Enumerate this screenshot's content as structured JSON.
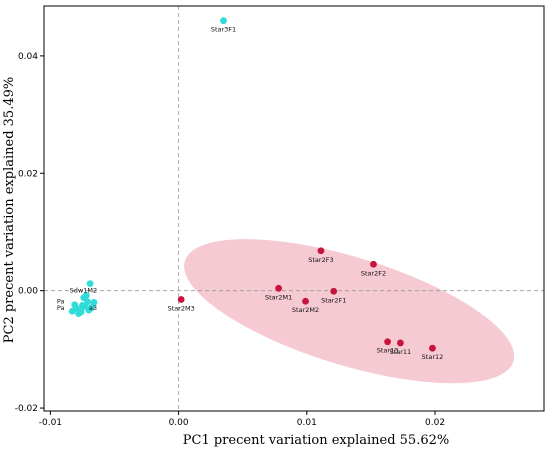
{
  "chart_data": {
    "type": "scatter",
    "xlabel": "PC1 precent variation explained 55.62%",
    "ylabel": "PC2 precent variation explained 35.49%",
    "xlim": [
      -0.0105,
      0.0285
    ],
    "ylim": [
      -0.0205,
      0.0485
    ],
    "xticks": [
      {
        "value": -0.01,
        "label": "-0.01"
      },
      {
        "value": 0.0,
        "label": "0.00"
      },
      {
        "value": 0.01,
        "label": "0.01"
      },
      {
        "value": 0.02,
        "label": "0.02"
      }
    ],
    "yticks": [
      {
        "value": -0.02,
        "label": "-0.02"
      },
      {
        "value": 0.0,
        "label": "0.00"
      },
      {
        "value": 0.02,
        "label": "0.02"
      },
      {
        "value": 0.04,
        "label": "0.04"
      }
    ],
    "reference_lines": {
      "x": 0.0,
      "y": 0.0
    },
    "grid": false,
    "colors": {
      "cyan": "#2fdcd8",
      "red": "#c8143c",
      "ellipse": "#f2b8c3"
    },
    "ellipse": {
      "cx": 0.0133,
      "cy": -0.0035,
      "rx": 0.0134,
      "ry": 0.0092,
      "rotation_deg": 17
    },
    "series": [
      {
        "color_key": "cyan",
        "points": [
          {
            "x": 0.0035,
            "y": 0.046,
            "label": "Star3F1"
          },
          {
            "x": -0.0069,
            "y": 0.0012,
            "label": ""
          },
          {
            "x": -0.0072,
            "y": -0.0008,
            "label": ""
          },
          {
            "x": -0.0066,
            "y": -0.002,
            "label": ""
          },
          {
            "x": -0.0075,
            "y": -0.0025,
            "label": ""
          },
          {
            "x": -0.0079,
            "y": -0.0031,
            "label": ""
          },
          {
            "x": -0.0083,
            "y": -0.0035,
            "label": ""
          },
          {
            "x": -0.0078,
            "y": -0.0039,
            "label": ""
          },
          {
            "x": -0.007,
            "y": -0.0033,
            "label": ""
          },
          {
            "x": -0.0073,
            "y": -0.0027,
            "label": ""
          },
          {
            "x": -0.0081,
            "y": -0.0024,
            "label": ""
          },
          {
            "x": -0.0068,
            "y": -0.0029,
            "label": ""
          },
          {
            "x": -0.0076,
            "y": -0.0036,
            "label": ""
          },
          {
            "x": -0.008,
            "y": -0.003,
            "label": ""
          },
          {
            "x": -0.0071,
            "y": -0.0019,
            "label": ""
          },
          {
            "x": -0.0074,
            "y": -0.0012,
            "label": ""
          }
        ]
      },
      {
        "color_key": "red",
        "points": [
          {
            "x": 0.0002,
            "y": -0.0015,
            "label": "Star2M3"
          },
          {
            "x": 0.0078,
            "y": 0.0004,
            "label": "Star2M1"
          },
          {
            "x": 0.0099,
            "y": -0.0018,
            "label": "Star2M2"
          },
          {
            "x": 0.0111,
            "y": 0.0068,
            "label": "Star2F3"
          },
          {
            "x": 0.0121,
            "y": -0.0001,
            "label": "Star2F1"
          },
          {
            "x": 0.0152,
            "y": 0.0045,
            "label": "Star2F2"
          },
          {
            "x": 0.0163,
            "y": -0.0087,
            "label": "Star13"
          },
          {
            "x": 0.0173,
            "y": -0.0089,
            "label": "Star11"
          },
          {
            "x": 0.0198,
            "y": -0.0098,
            "label": "Star12"
          }
        ]
      }
    ],
    "cluster_labels": [
      {
        "x": -0.0085,
        "y": -0.0003,
        "text": "Sdw1M2"
      },
      {
        "x": -0.0095,
        "y": -0.0022,
        "text": "Pa"
      },
      {
        "x": -0.0095,
        "y": -0.0033,
        "text": "Pa"
      },
      {
        "x": -0.007,
        "y": -0.0033,
        "text": "a3"
      }
    ]
  }
}
